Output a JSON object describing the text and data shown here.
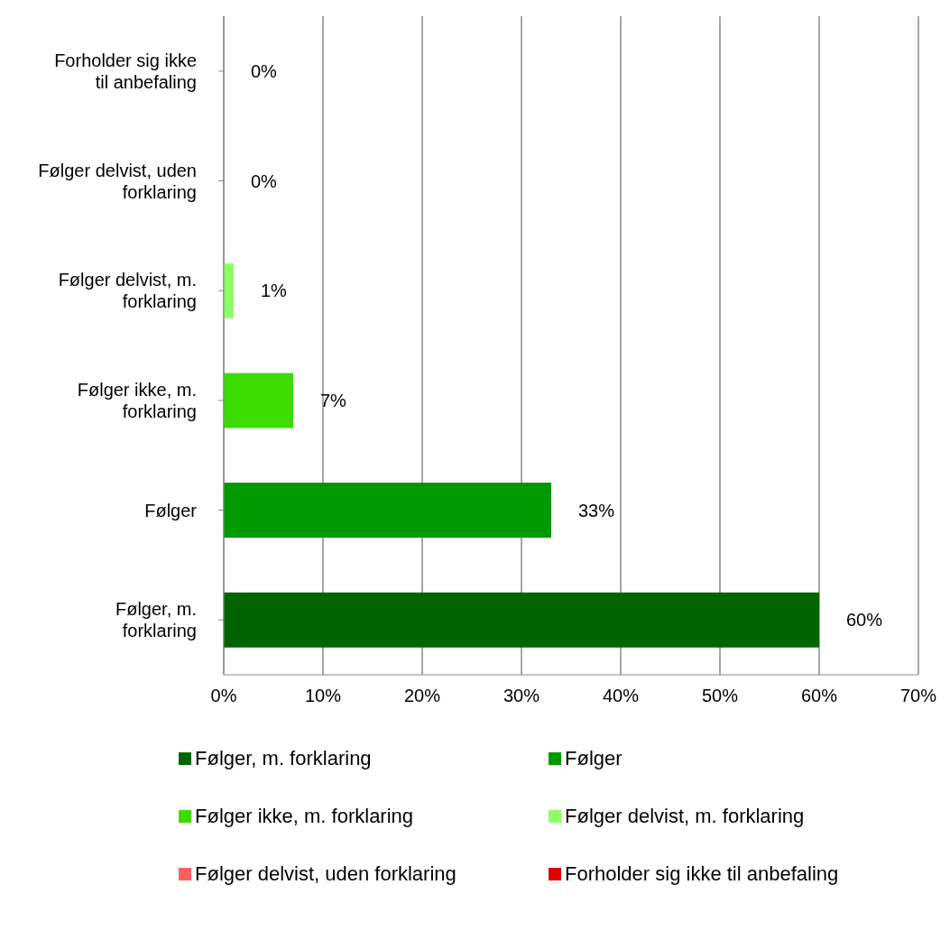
{
  "chart_data": {
    "type": "bar",
    "orientation": "horizontal",
    "stacked": true,
    "categories": [
      "Forholder sig ikke til anbefaling",
      "Følger delvist, uden forklaring",
      "Følger delvist, m. forklaring",
      "Følger ikke, m. forklaring",
      "Følger",
      "Følger, m. forklaring"
    ],
    "series": [
      {
        "name": "Følger, m. forklaring",
        "color": "#006400",
        "values": [
          null,
          null,
          null,
          null,
          null,
          60
        ],
        "value_labels": [
          null,
          null,
          null,
          null,
          null,
          "60%"
        ]
      },
      {
        "name": "Følger",
        "color": "#009900",
        "values": [
          null,
          null,
          null,
          null,
          33,
          null
        ],
        "value_labels": [
          null,
          null,
          null,
          null,
          "33%",
          null
        ]
      },
      {
        "name": "Følger ikke, m. forklaring",
        "color": "#3ddc00",
        "values": [
          null,
          null,
          null,
          7,
          null,
          null
        ],
        "value_labels": [
          null,
          null,
          null,
          "7%",
          null,
          null
        ]
      },
      {
        "name": "Følger delvist, m. forklaring",
        "color": "#8cff66",
        "values": [
          null,
          null,
          1,
          null,
          null,
          null
        ],
        "value_labels": [
          null,
          null,
          "1%",
          null,
          null,
          null
        ]
      },
      {
        "name": "Følger delvist, uden forklaring",
        "color": "#ff5f5f",
        "values": [
          null,
          0,
          null,
          null,
          null,
          null
        ],
        "value_labels": [
          null,
          "0%",
          null,
          null,
          null,
          null
        ]
      },
      {
        "name": "Forholder sig ikke til anbefaling",
        "color": "#e00000",
        "values": [
          0,
          null,
          null,
          null,
          null,
          null
        ],
        "value_labels": [
          "0%",
          null,
          null,
          null,
          null,
          null
        ]
      }
    ],
    "xlim": [
      0,
      70
    ],
    "xticks": [
      {
        "value": 0,
        "label": "0%"
      },
      {
        "value": 10,
        "label": "10%"
      },
      {
        "value": 20,
        "label": "20%"
      },
      {
        "value": 30,
        "label": "30%"
      },
      {
        "value": 40,
        "label": "40%"
      },
      {
        "value": 50,
        "label": "50%"
      },
      {
        "value": 60,
        "label": "60%"
      },
      {
        "value": 70,
        "label": "70%"
      }
    ],
    "grid": "x",
    "legend": "bottom"
  }
}
